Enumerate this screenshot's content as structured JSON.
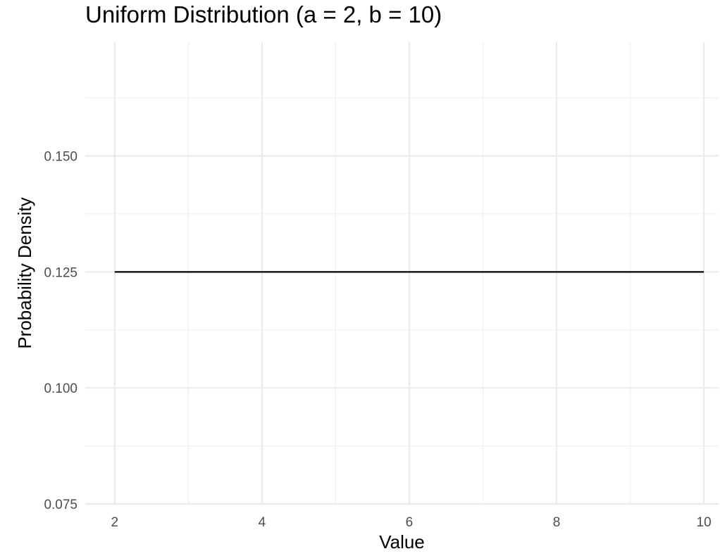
{
  "chart_data": {
    "type": "line",
    "title": "Uniform Distribution (a = 2, b = 10)",
    "xlabel": "Value",
    "ylabel": "Probability Density",
    "xlim": [
      1.6,
      10.2
    ],
    "ylim": [
      0.075,
      0.1745
    ],
    "x_ticks": [
      2,
      4,
      6,
      8,
      10
    ],
    "x_tick_labels": [
      "2",
      "4",
      "6",
      "8",
      "10"
    ],
    "x_minor_ticks": [
      3,
      5,
      7,
      9
    ],
    "y_ticks": [
      0.075,
      0.1,
      0.125,
      0.15
    ],
    "y_tick_labels": [
      "0.075",
      "0.100",
      "0.125",
      "0.150"
    ],
    "y_minor_ticks": [
      0.0875,
      0.1125,
      0.1375,
      0.1625
    ],
    "grid": true,
    "series": [
      {
        "x": [
          2,
          10
        ],
        "y": [
          0.125,
          0.125
        ],
        "color": "#000000"
      }
    ]
  }
}
